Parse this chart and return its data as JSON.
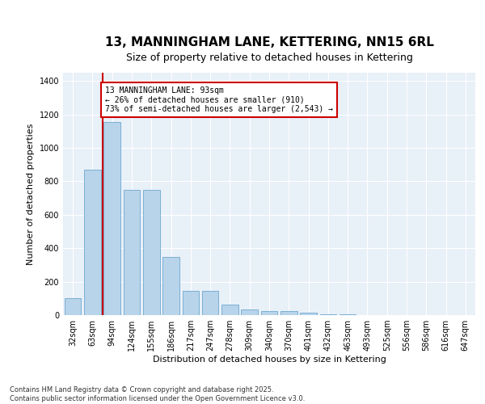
{
  "title": "13, MANNINGHAM LANE, KETTERING, NN15 6RL",
  "subtitle": "Size of property relative to detached houses in Kettering",
  "xlabel": "Distribution of detached houses by size in Kettering",
  "ylabel": "Number of detached properties",
  "categories": [
    "32sqm",
    "63sqm",
    "94sqm",
    "124sqm",
    "155sqm",
    "186sqm",
    "217sqm",
    "247sqm",
    "278sqm",
    "309sqm",
    "340sqm",
    "370sqm",
    "401sqm",
    "432sqm",
    "463sqm",
    "493sqm",
    "525sqm",
    "556sqm",
    "586sqm",
    "616sqm",
    "647sqm"
  ],
  "values": [
    103,
    868,
    1155,
    750,
    750,
    350,
    145,
    145,
    63,
    35,
    22,
    22,
    14,
    5,
    3,
    2,
    1,
    0,
    0,
    0,
    0
  ],
  "bar_color": "#b8d4ea",
  "bar_edge_color": "#7aafd4",
  "vline_color": "#cc0000",
  "vline_x_index": 2,
  "annotation_box_text": "13 MANNINGHAM LANE: 93sqm\n← 26% of detached houses are smaller (910)\n73% of semi-detached houses are larger (2,543) →",
  "annotation_box_color": "#cc0000",
  "annotation_box_facecolor": "white",
  "ylim": [
    0,
    1450
  ],
  "yticks": [
    0,
    200,
    400,
    600,
    800,
    1000,
    1200,
    1400
  ],
  "background_color": "#e8f0f8",
  "footer_text": "Contains HM Land Registry data © Crown copyright and database right 2025.\nContains public sector information licensed under the Open Government Licence v3.0.",
  "title_fontsize": 11,
  "subtitle_fontsize": 9,
  "xlabel_fontsize": 8,
  "ylabel_fontsize": 8,
  "tick_fontsize": 7,
  "annot_fontsize": 7,
  "footer_fontsize": 6
}
